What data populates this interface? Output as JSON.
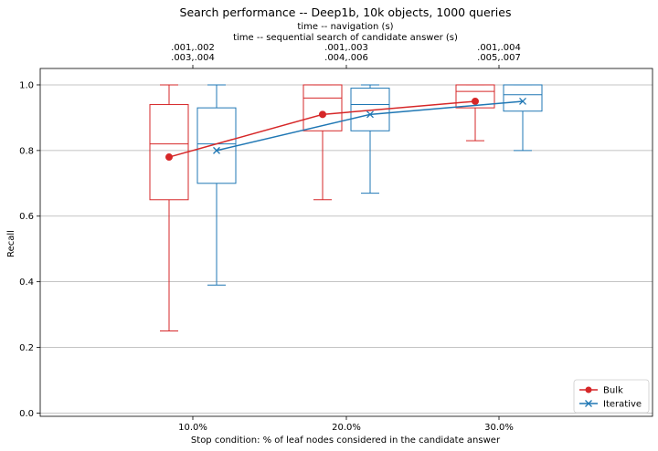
{
  "chart_data": {
    "type": "box",
    "title": "Search performance -- Deep1b, 10k objects, 1000 queries",
    "top_axis_label_1": "time -- navigation (s)",
    "top_axis_label_2": "time -- sequential search of candidate answer (s)",
    "xlabel": "Stop condition: % of leaf nodes considered in the candidate answer",
    "ylabel": "Recall",
    "ylim": [
      -0.01,
      1.05
    ],
    "yticks": [
      "0.0",
      "0.2",
      "0.4",
      "0.6",
      "0.8",
      "1.0"
    ],
    "grid": "horizontal",
    "legend_position": "lower-right",
    "categories": [
      "10.0%",
      "20.0%",
      "30.0%"
    ],
    "top_tick_labels": [
      [
        ".001,.002",
        ".003,.004"
      ],
      [
        ".001,.003",
        ".004,.006"
      ],
      [
        ".001,.004",
        ".005,.007"
      ]
    ],
    "series": [
      {
        "name": "Bulk",
        "color": "#d62728",
        "marker": "circle",
        "boxes": [
          {
            "whisker_low": 0.25,
            "q1": 0.65,
            "median": 0.82,
            "q3": 0.94,
            "whisker_high": 1.0
          },
          {
            "whisker_low": 0.65,
            "q1": 0.86,
            "median": 0.96,
            "q3": 1.0,
            "whisker_high": 1.0
          },
          {
            "whisker_low": 0.83,
            "q1": 0.93,
            "median": 0.98,
            "q3": 1.0,
            "whisker_high": 1.0
          }
        ],
        "mean": [
          0.78,
          0.91,
          0.95
        ]
      },
      {
        "name": "Iterative",
        "color": "#1f77b4",
        "marker": "x",
        "boxes": [
          {
            "whisker_low": 0.39,
            "q1": 0.7,
            "median": 0.82,
            "q3": 0.93,
            "whisker_high": 1.0
          },
          {
            "whisker_low": 0.67,
            "q1": 0.86,
            "median": 0.94,
            "q3": 0.99,
            "whisker_high": 1.0
          },
          {
            "whisker_low": 0.8,
            "q1": 0.92,
            "median": 0.97,
            "q3": 1.0,
            "whisker_high": 1.0
          }
        ],
        "mean": [
          0.8,
          0.91,
          0.95
        ]
      }
    ]
  }
}
